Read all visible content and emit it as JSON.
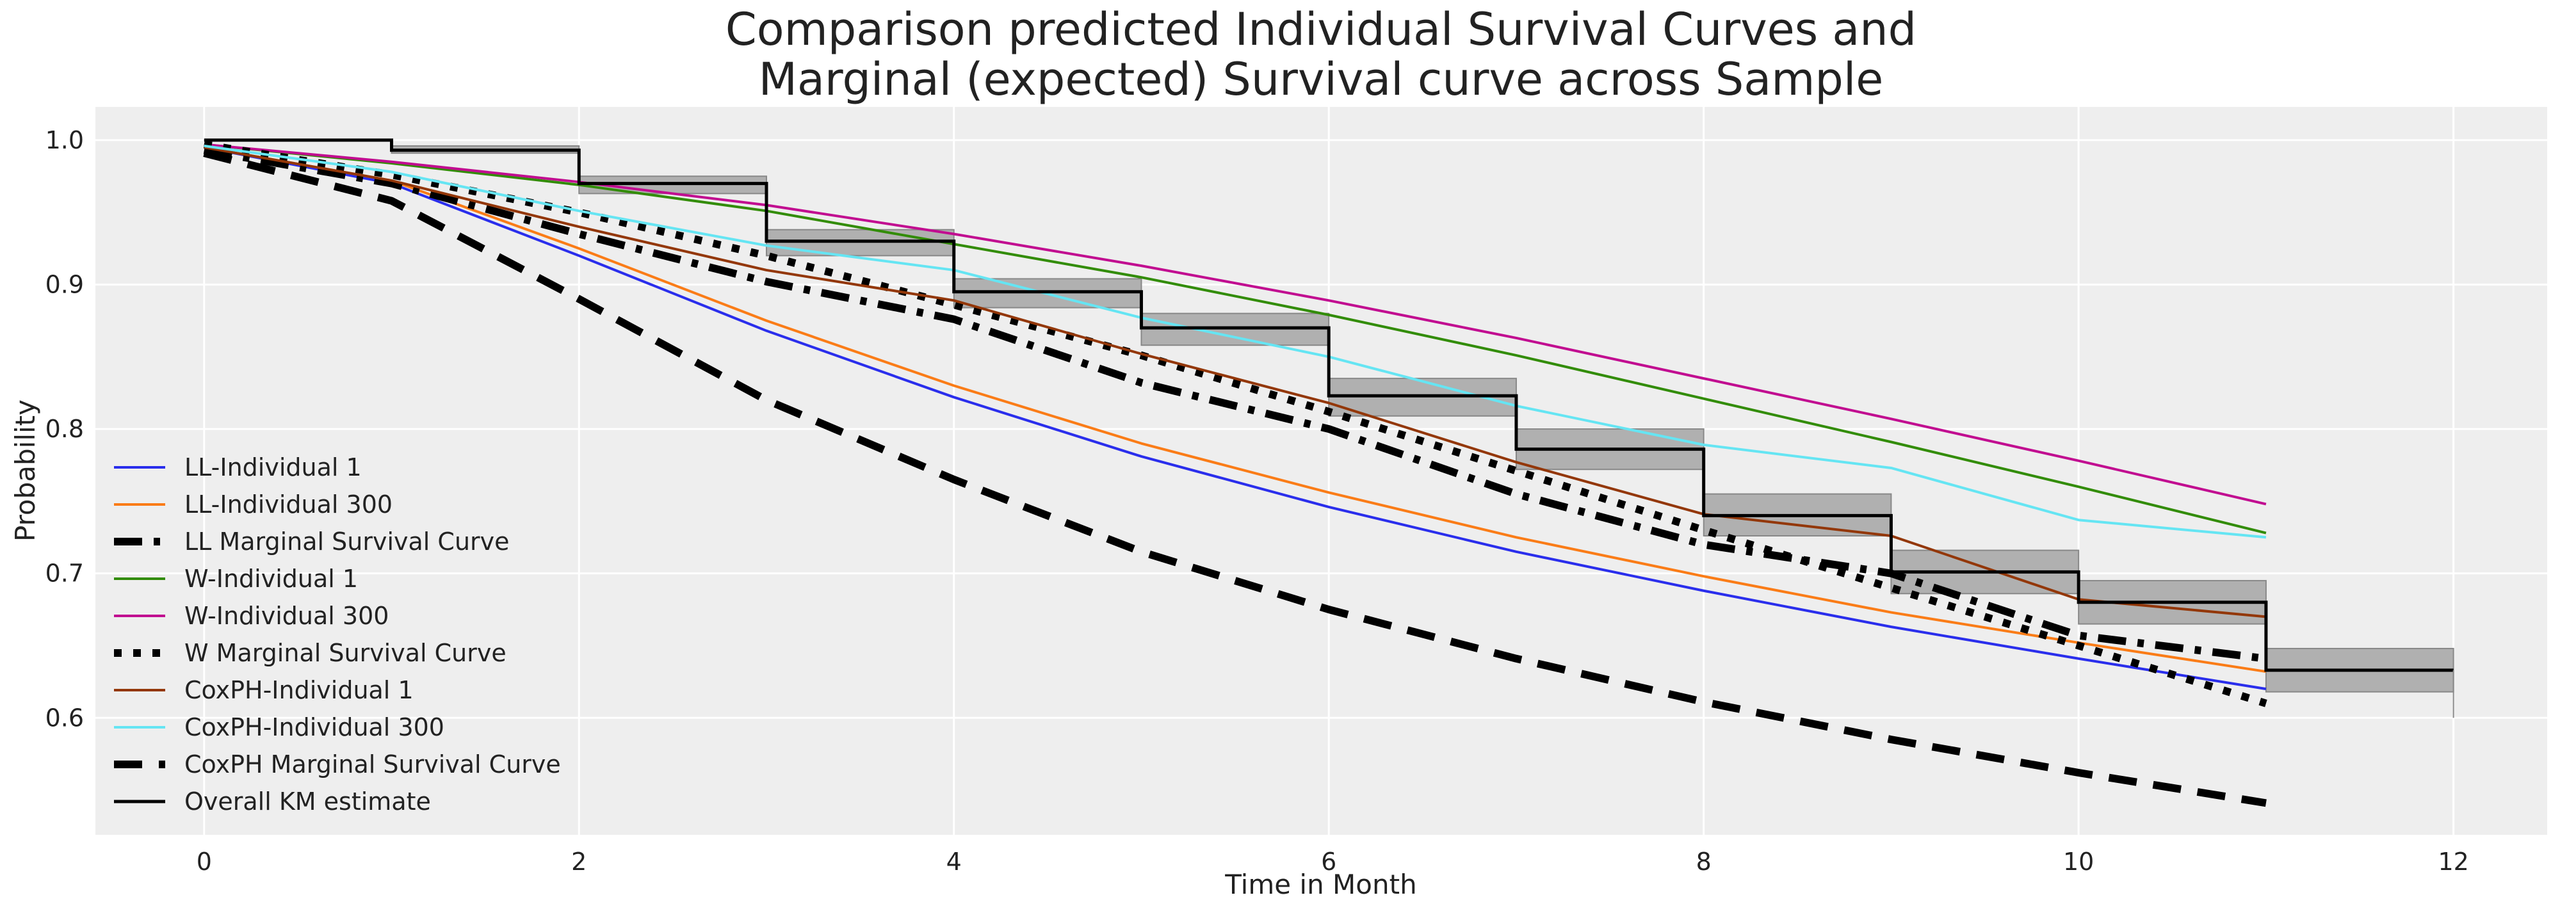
{
  "chart_data": {
    "type": "line",
    "title_line1": "Comparison predicted Individual Survival Curves and",
    "title_line2": "Marginal (expected) Survival curve across Sample",
    "xlabel": "Time in Month",
    "ylabel": "Probability",
    "xlim": [
      -0.58,
      12.5
    ],
    "ylim": [
      0.519,
      1.023
    ],
    "grid": true,
    "legend_placement": "lower-left",
    "xticks": [
      0,
      2,
      4,
      6,
      8,
      10,
      12
    ],
    "xtick_labels": [
      "0",
      "2",
      "4",
      "6",
      "8",
      "10",
      "12"
    ],
    "yticks": [
      0.6,
      0.7,
      0.8,
      0.9,
      1.0
    ],
    "ytick_labels": [
      "0.6",
      "0.7",
      "0.8",
      "0.9",
      "1.0"
    ],
    "x": [
      0,
      1,
      2,
      3,
      4,
      5,
      6,
      7,
      8,
      9,
      10,
      11
    ],
    "series": [
      {
        "name": "LL-Individual 1",
        "color": "#2a2eec",
        "style": "solid",
        "values": [
          0.995,
          0.97,
          0.92,
          0.868,
          0.822,
          0.781,
          0.746,
          0.715,
          0.688,
          0.663,
          0.641,
          0.62
        ]
      },
      {
        "name": "LL-Individual 300",
        "color": "#fa7c17",
        "style": "solid",
        "values": [
          0.995,
          0.972,
          0.925,
          0.875,
          0.83,
          0.79,
          0.756,
          0.725,
          0.698,
          0.673,
          0.652,
          0.632
        ]
      },
      {
        "name": "LL Marginal Survival Curve",
        "color": "#000000",
        "style": "dashdot",
        "values": [
          0.993,
          0.97,
          0.935,
          0.902,
          0.876,
          0.832,
          0.8,
          0.755,
          0.72,
          0.7,
          0.657,
          0.641
        ]
      },
      {
        "name": "W-Individual 1",
        "color": "#328c06",
        "style": "solid",
        "values": [
          0.997,
          0.984,
          0.969,
          0.951,
          0.928,
          0.905,
          0.879,
          0.851,
          0.821,
          0.791,
          0.76,
          0.728
        ]
      },
      {
        "name": "W-Individual 300",
        "color": "#c10c90",
        "style": "solid",
        "values": [
          0.997,
          0.985,
          0.971,
          0.955,
          0.935,
          0.913,
          0.889,
          0.863,
          0.835,
          0.807,
          0.778,
          0.748
        ]
      },
      {
        "name": "W Marginal Survival Curve",
        "color": "#000000",
        "style": "dotted",
        "values": [
          0.997,
          0.976,
          0.95,
          0.92,
          0.886,
          0.851,
          0.812,
          0.771,
          0.73,
          0.69,
          0.65,
          0.61
        ]
      },
      {
        "name": "CoxPH-Individual 1",
        "color": "#933708",
        "style": "solid",
        "values": [
          0.995,
          0.972,
          0.94,
          0.91,
          0.889,
          0.852,
          0.818,
          0.777,
          0.741,
          0.726,
          0.682,
          0.67
        ]
      },
      {
        "name": "CoxPH-Individual 300",
        "color": "#65e5f3",
        "style": "solid",
        "values": [
          0.996,
          0.978,
          0.951,
          0.927,
          0.91,
          0.877,
          0.85,
          0.816,
          0.789,
          0.773,
          0.737,
          0.725
        ]
      },
      {
        "name": "CoxPH Marginal Survival Curve",
        "color": "#000000",
        "style": "dashed",
        "values": [
          0.991,
          0.958,
          0.89,
          0.82,
          0.765,
          0.715,
          0.675,
          0.641,
          0.611,
          0.585,
          0.562,
          0.541
        ]
      }
    ],
    "km": {
      "name": "Overall KM estimate",
      "color": "#000000",
      "band_color": "#b0b0b0",
      "step_times": [
        0,
        1,
        2,
        3,
        4,
        5,
        6,
        7,
        8,
        9,
        10,
        11,
        12
      ],
      "survival": [
        1.0,
        0.993,
        0.97,
        0.93,
        0.895,
        0.87,
        0.823,
        0.786,
        0.74,
        0.701,
        0.68,
        0.633
      ],
      "ci_lower": [
        1.0,
        0.991,
        0.963,
        0.92,
        0.884,
        0.858,
        0.809,
        0.772,
        0.726,
        0.686,
        0.665,
        0.618
      ],
      "ci_upper": [
        1.0,
        0.996,
        0.975,
        0.938,
        0.904,
        0.88,
        0.835,
        0.8,
        0.755,
        0.716,
        0.695,
        0.648
      ],
      "end_drop_to": 0.6
    }
  }
}
